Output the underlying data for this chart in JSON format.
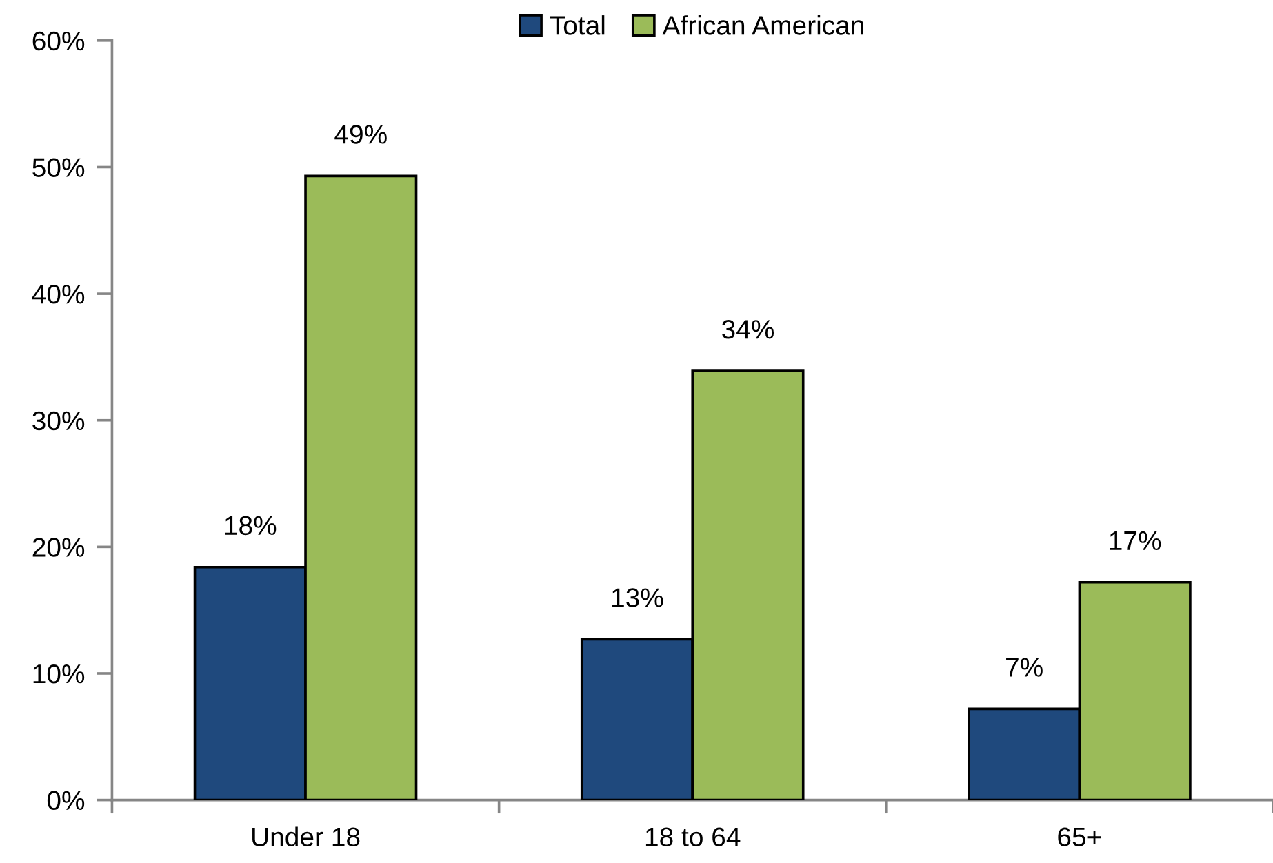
{
  "chart_data": {
    "type": "bar",
    "categories": [
      "Under 18",
      "18 to 64",
      "65+"
    ],
    "series": [
      {
        "name": "Total",
        "color": "#1f497d",
        "values": [
          18.4,
          12.7,
          7.2
        ],
        "value_labels": [
          "18%",
          "13%",
          "7%"
        ]
      },
      {
        "name": "African American",
        "color": "#9bbb59",
        "values": [
          49.3,
          33.9,
          17.2
        ],
        "value_labels": [
          "49%",
          "34%",
          "17%"
        ]
      }
    ],
    "ylim": [
      0,
      60
    ],
    "yticks": [
      {
        "value": 0,
        "label": "0%"
      },
      {
        "value": 10,
        "label": "10%"
      },
      {
        "value": 20,
        "label": "20%"
      },
      {
        "value": 30,
        "label": "30%"
      },
      {
        "value": 40,
        "label": "40%"
      },
      {
        "value": 50,
        "label": "50%"
      },
      {
        "value": 60,
        "label": "60%"
      }
    ],
    "legend": "top"
  }
}
